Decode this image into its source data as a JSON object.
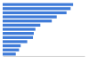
{
  "chart_data": {
    "type": "bar",
    "orientation": "horizontal",
    "categories": [
      null,
      null,
      null,
      null,
      null,
      null,
      null,
      null,
      null,
      null,
      null,
      null,
      null
    ],
    "values": [
      86,
      83,
      78,
      66,
      60,
      46,
      40,
      38,
      37,
      30,
      22,
      20,
      16
    ],
    "color": "#3f7bd8",
    "xlim": [
      0,
      100
    ],
    "xticks": [],
    "grid": false,
    "tick_labels": false
  }
}
